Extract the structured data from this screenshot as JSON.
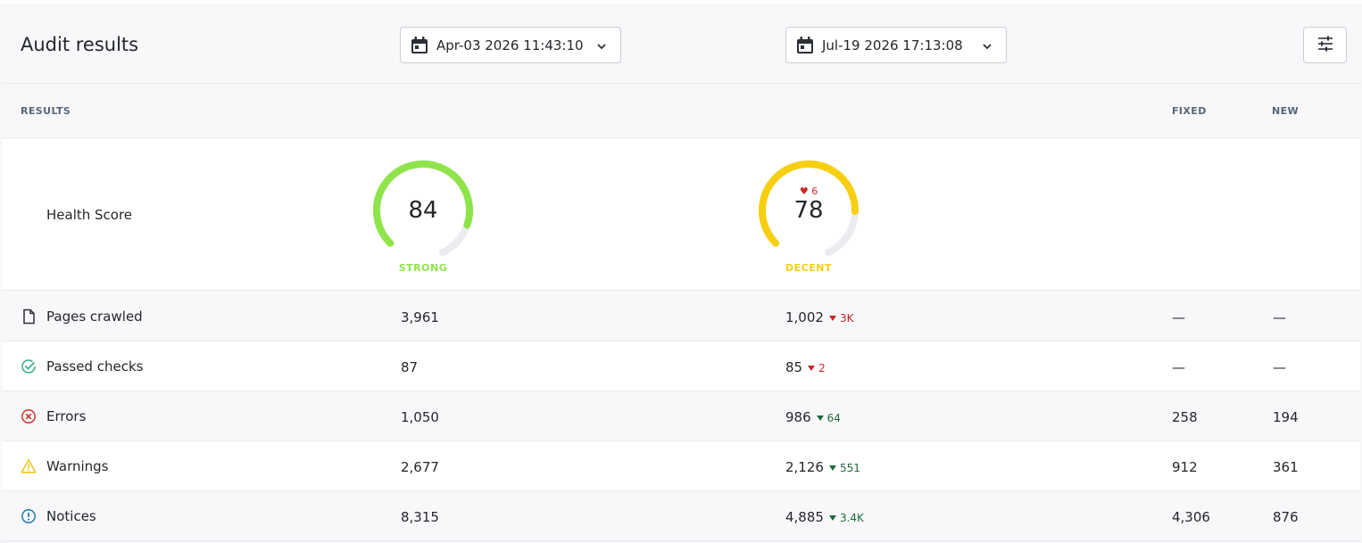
{
  "page": {
    "title": "Audit results"
  },
  "dates": {
    "first": {
      "value": "Apr-03 2026 11:43:10",
      "icon": "calendar-icon"
    },
    "second": {
      "value": "Jul-19 2026 17:13:08",
      "icon": "calendar-icon"
    }
  },
  "filter": {
    "icon": "sliders-icon"
  },
  "columns": {
    "results": "RESULTS",
    "fixed": "FIXED",
    "new": "NEW"
  },
  "health": {
    "label": "Health Score",
    "first": {
      "score": "84",
      "rating": "STRONG",
      "fraction": 0.84,
      "color": "#8ee44a"
    },
    "second": {
      "score": "78",
      "rating": "DECENT",
      "fraction": 0.78,
      "color": "#f7cf10",
      "delta": "6",
      "delta_dir": "down"
    }
  },
  "rows": [
    {
      "label": "Pages crawled",
      "icon": "page-icon",
      "first": "3,961",
      "second": "1,002",
      "delta": "3K",
      "delta_dir": "down",
      "fixed": "—",
      "new": "—"
    },
    {
      "label": "Passed checks",
      "icon": "check-circle-icon",
      "first": "87",
      "second": "85",
      "delta": "2",
      "delta_dir": "down",
      "fixed": "—",
      "new": "—"
    },
    {
      "label": "Errors",
      "icon": "error-circle-icon",
      "first": "1,050",
      "second": "986",
      "delta": "64",
      "delta_dir": "up",
      "fixed": "258",
      "new": "194"
    },
    {
      "label": "Warnings",
      "icon": "warning-triangle-icon",
      "first": "2,677",
      "second": "2,126",
      "delta": "551",
      "delta_dir": "up",
      "fixed": "912",
      "new": "361"
    },
    {
      "label": "Notices",
      "icon": "info-circle-icon",
      "first": "8,315",
      "second": "4,885",
      "delta": "3.4K",
      "delta_dir": "up",
      "fixed": "4,306",
      "new": "876"
    }
  ],
  "colors": {
    "down": "#c62828",
    "up": "#1e6b3a",
    "check": "#3aa88a",
    "error": "#d32f2f",
    "warning": "#f0c419",
    "info": "#1f78b4"
  }
}
